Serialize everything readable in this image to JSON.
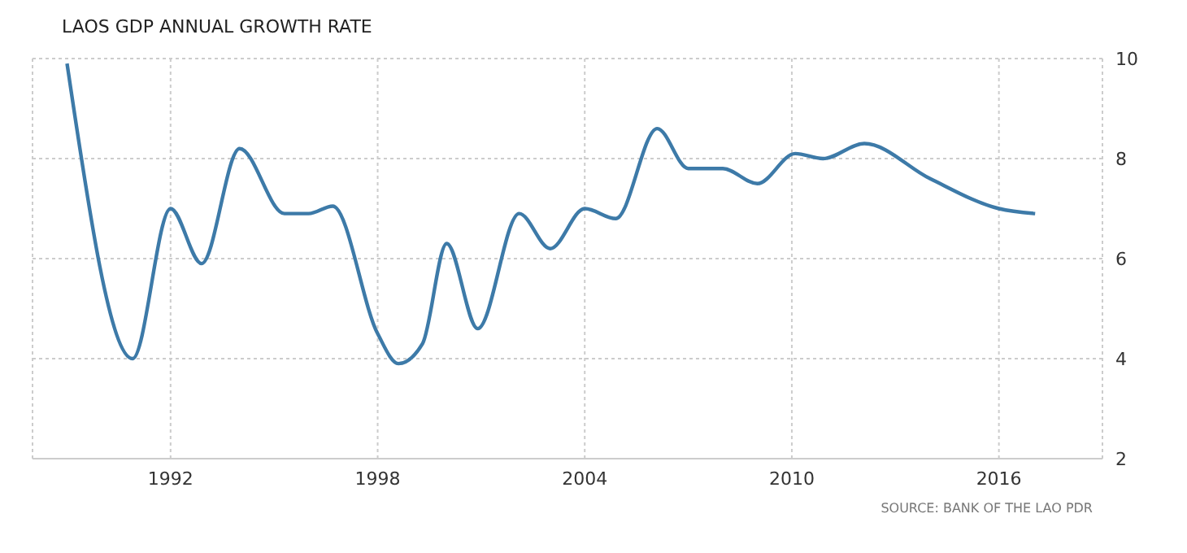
{
  "chart_data": {
    "type": "line",
    "title": "LAOS GDP ANNUAL GROWTH RATE",
    "x": [
      1989.0,
      1990.9,
      1992.0,
      1992.9,
      1994.0,
      1995.3,
      1996.0,
      1996.7,
      1998.0,
      1998.6,
      1999.3,
      2000.0,
      2000.9,
      2002.1,
      2003.0,
      2004.0,
      2004.9,
      2006.1,
      2007.0,
      2008.0,
      2009.0,
      2010.1,
      2010.9,
      2012.1,
      2014.0,
      2016.0,
      2017.05
    ],
    "series": [
      {
        "color": "#3d7aa8",
        "values": [
          9.9,
          4.0,
          7.0,
          5.9,
          8.2,
          6.9,
          6.9,
          7.05,
          4.5,
          3.9,
          4.3,
          6.3,
          4.6,
          6.9,
          6.2,
          7.0,
          6.8,
          8.6,
          7.8,
          7.8,
          7.5,
          8.1,
          8.0,
          8.3,
          7.6,
          7.0,
          6.9
        ]
      }
    ],
    "xlim": [
      1988,
      2019
    ],
    "xticks": [
      1992,
      1998,
      2004,
      2010,
      2016
    ],
    "ylim": [
      2,
      10
    ],
    "yticks": [
      2,
      4,
      6,
      8,
      10
    ],
    "grid": true,
    "marker": "none",
    "line_style": "solid",
    "annotations": [
      "SOURCE: BANK OF THE LAO PDR"
    ]
  }
}
